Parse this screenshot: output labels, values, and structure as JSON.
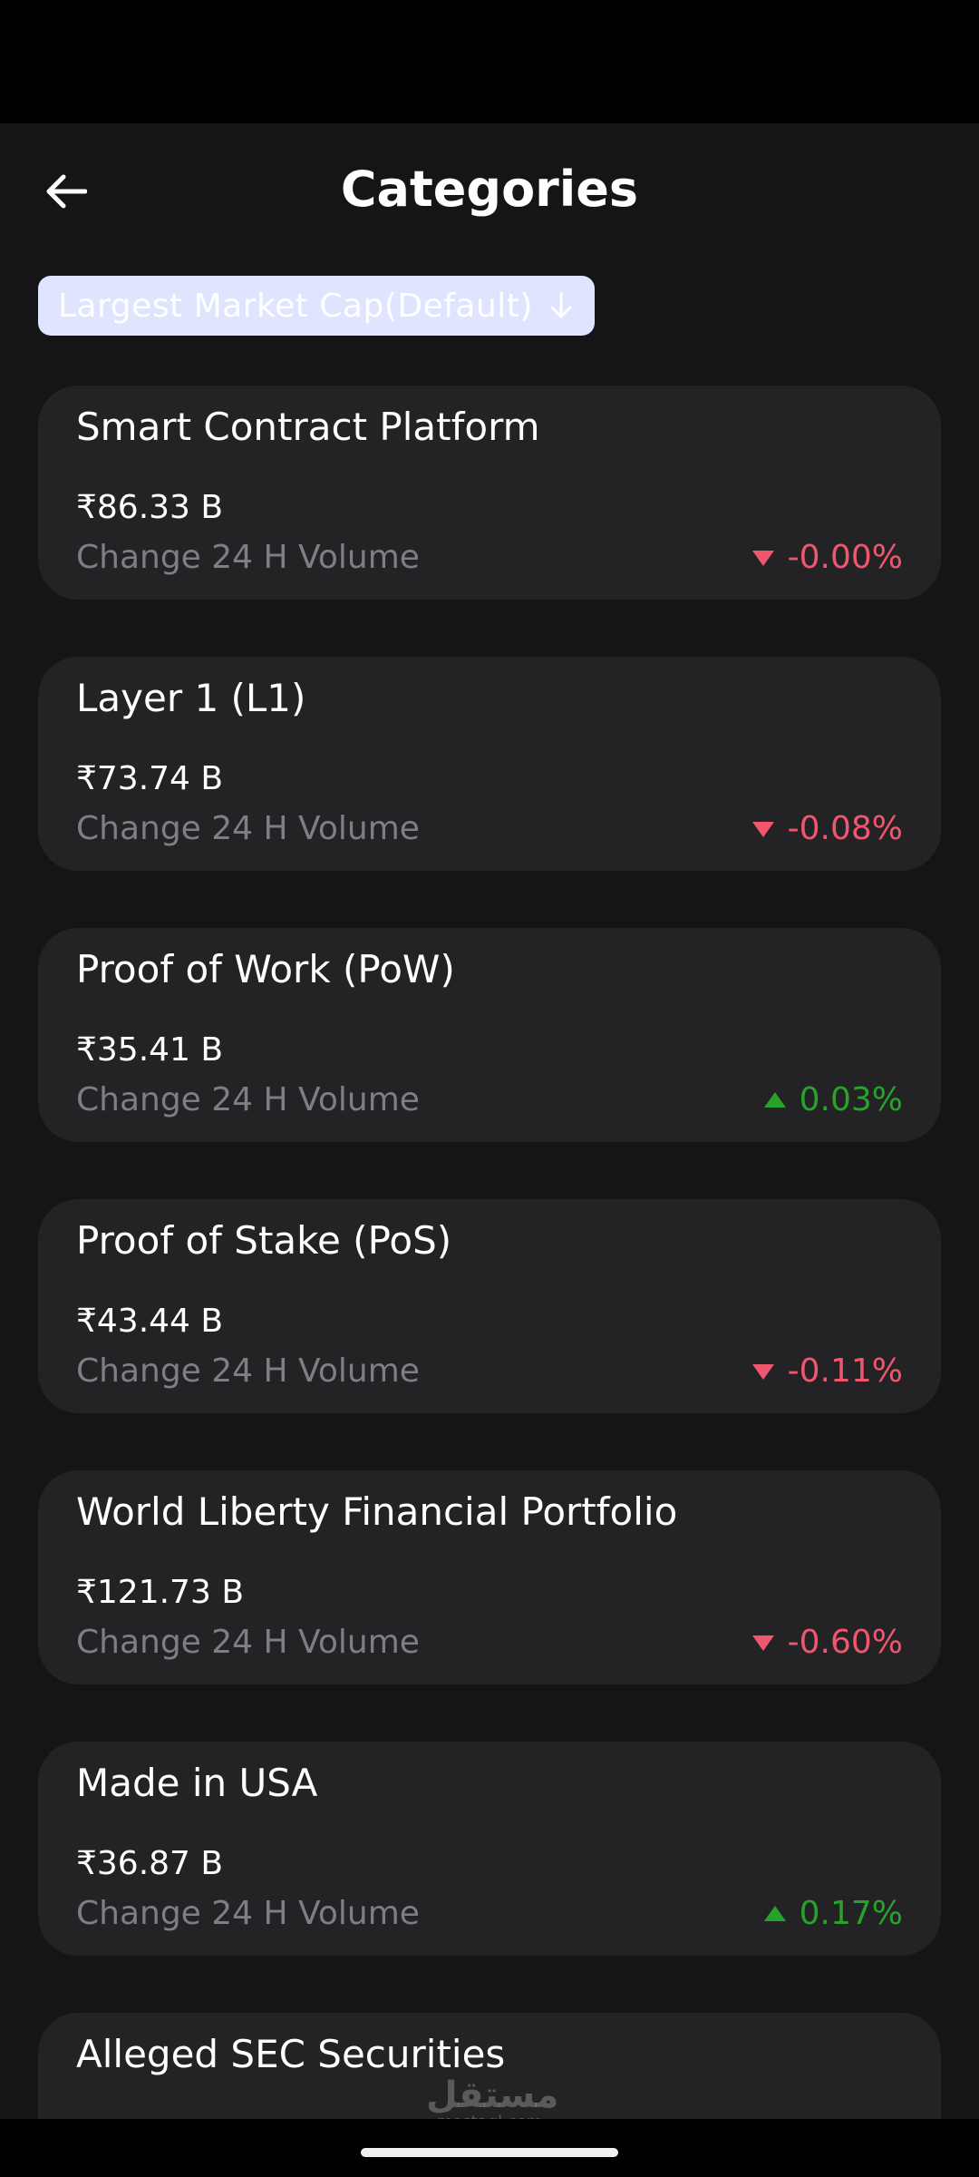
{
  "header": {
    "title": "Categories"
  },
  "sort": {
    "label": "Largest Market Cap(Default)"
  },
  "categories": [
    {
      "name": "Smart Contract Platform",
      "market_cap": "₹86.33 B",
      "sub_label": "Change 24 H Volume",
      "change": "-0.00%",
      "direction": "down"
    },
    {
      "name": "Layer 1 (L1)",
      "market_cap": "₹73.74 B",
      "sub_label": "Change 24 H Volume",
      "change": "-0.08%",
      "direction": "down"
    },
    {
      "name": "Proof of Work (PoW)",
      "market_cap": "₹35.41 B",
      "sub_label": "Change 24 H Volume",
      "change": "0.03%",
      "direction": "up"
    },
    {
      "name": "Proof of Stake (PoS)",
      "market_cap": "₹43.44 B",
      "sub_label": "Change 24 H Volume",
      "change": "-0.11%",
      "direction": "down"
    },
    {
      "name": "World Liberty Financial Portfolio",
      "market_cap": "₹121.73 B",
      "sub_label": "Change 24 H Volume",
      "change": "-0.60%",
      "direction": "down"
    },
    {
      "name": "Made in USA",
      "market_cap": "₹36.87 B",
      "sub_label": "Change 24 H Volume",
      "change": "0.17%",
      "direction": "up"
    },
    {
      "name": "Alleged SEC Securities"
    }
  ],
  "watermark": {
    "arabic": "مستقل",
    "latin": "mostaql.com"
  },
  "colors": {
    "negative": "#f0566e",
    "positive": "#27a32a",
    "card_bg": "#232326",
    "screen_bg": "#151517",
    "chip_bg": "#dfe5ff"
  }
}
